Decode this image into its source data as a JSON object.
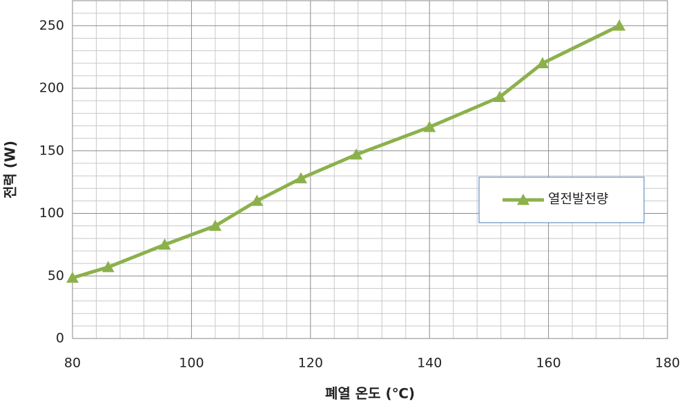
{
  "chart_data": {
    "type": "line",
    "x_label": "폐열 온도 (℃)",
    "y_label": "전력 (W)",
    "x": [
      80,
      86,
      95.5,
      104,
      111,
      118.4,
      127.7,
      140,
      151.8,
      159,
      171.9
    ],
    "series": [
      {
        "name": "열전발전량",
        "color": "#8cb14c",
        "marker": "triangle",
        "values": [
          48.5,
          57,
          75,
          90,
          110,
          128,
          147,
          169,
          193,
          220,
          250
        ]
      }
    ],
    "xlim": [
      80,
      180
    ],
    "xticks": [
      80,
      100,
      120,
      140,
      160,
      180
    ],
    "ylim": [
      0,
      270
    ],
    "yticks": [
      0,
      50,
      100,
      150,
      200,
      250
    ],
    "grid": true,
    "minor_grid": true,
    "legend": "right"
  }
}
